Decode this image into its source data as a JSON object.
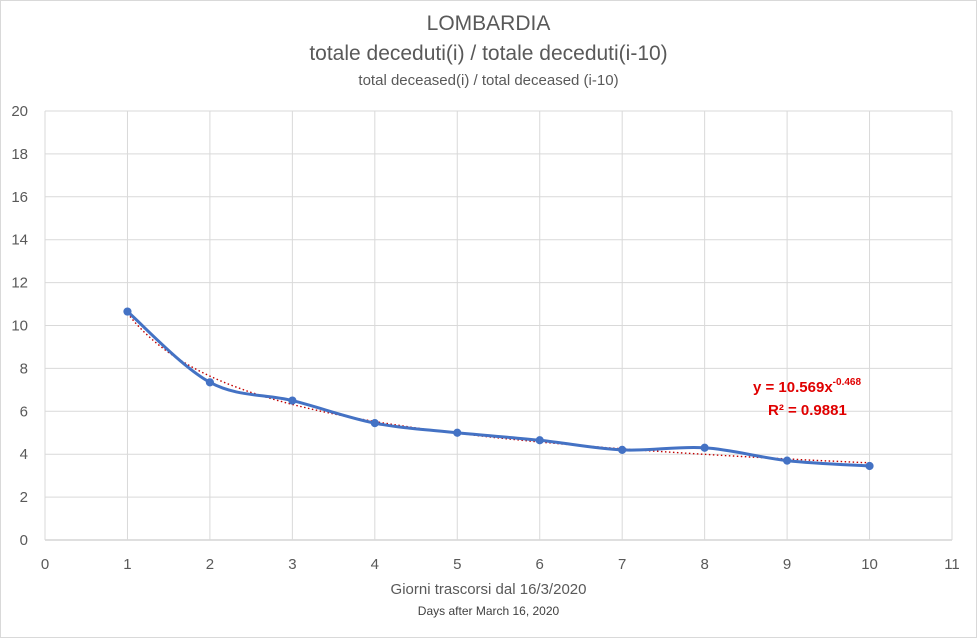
{
  "chart_data": {
    "type": "line",
    "title": "LOMBARDIA",
    "subtitle": "totale deceduti(i) / totale deceduti(i-10)",
    "subtitle2": "total deceased(i) / total deceased (i-10)",
    "xlabel": "Giorni trascorsi dal 16/3/2020",
    "xlabel2": "Days after March 16, 2020",
    "ylabel": "",
    "xlim": [
      0,
      11
    ],
    "ylim": [
      0,
      20
    ],
    "x_ticks": [
      0,
      1,
      2,
      3,
      4,
      5,
      6,
      7,
      8,
      9,
      10,
      11
    ],
    "y_ticks": [
      0,
      2,
      4,
      6,
      8,
      10,
      12,
      14,
      16,
      18,
      20
    ],
    "grid": true,
    "series": [
      {
        "x": [
          1,
          2,
          3,
          4,
          5,
          6,
          7,
          8,
          9,
          10
        ],
        "values": [
          10.65,
          7.35,
          6.5,
          5.45,
          5.0,
          4.65,
          4.2,
          4.3,
          3.7,
          3.45
        ],
        "color": "#4472c4",
        "markers": true,
        "smooth": true
      }
    ],
    "trendline": {
      "type": "power",
      "a": 10.569,
      "b": -0.468,
      "color": "#c00000",
      "style": "dotted"
    },
    "annotation": {
      "equation_base": "y = 10.569x",
      "equation_exp": "-0.468",
      "r2": "R² = 0.9881",
      "color": "#e00000"
    }
  }
}
